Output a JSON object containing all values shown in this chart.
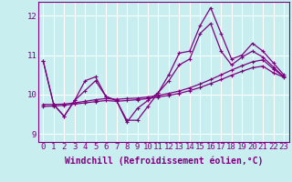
{
  "title": "",
  "xlabel": "Windchill (Refroidissement éolien,°C)",
  "background_color": "#c8eef0",
  "line_color": "#800080",
  "grid_color": "#ffffff",
  "xlim": [
    -0.5,
    23.5
  ],
  "ylim": [
    8.8,
    12.35
  ],
  "xticks": [
    0,
    1,
    2,
    3,
    4,
    5,
    6,
    7,
    8,
    9,
    10,
    11,
    12,
    13,
    14,
    15,
    16,
    17,
    18,
    19,
    20,
    21,
    22,
    23
  ],
  "yticks": [
    9,
    10,
    11,
    12
  ],
  "s1": [
    10.85,
    9.75,
    9.45,
    9.85,
    10.35,
    10.45,
    9.95,
    9.85,
    9.35,
    9.35,
    9.7,
    10.05,
    10.5,
    11.05,
    11.1,
    11.75,
    12.2,
    11.55,
    10.9,
    11.0,
    11.3,
    11.1,
    10.8,
    10.5
  ],
  "s2": [
    10.85,
    9.75,
    9.45,
    9.85,
    10.1,
    10.35,
    9.95,
    9.85,
    9.3,
    9.65,
    9.85,
    10.05,
    10.35,
    10.75,
    10.9,
    11.55,
    11.8,
    11.1,
    10.75,
    10.95,
    11.1,
    10.95,
    10.7,
    10.45
  ],
  "s3": [
    9.75,
    9.75,
    9.76,
    9.79,
    9.83,
    9.87,
    9.9,
    9.88,
    9.9,
    9.91,
    9.94,
    9.98,
    10.03,
    10.09,
    10.17,
    10.27,
    10.38,
    10.5,
    10.62,
    10.73,
    10.83,
    10.88,
    10.65,
    10.45
  ],
  "s4": [
    9.7,
    9.71,
    9.73,
    9.76,
    9.79,
    9.82,
    9.85,
    9.83,
    9.85,
    9.87,
    9.9,
    9.94,
    9.98,
    10.03,
    10.1,
    10.18,
    10.28,
    10.38,
    10.49,
    10.59,
    10.68,
    10.72,
    10.55,
    10.44
  ],
  "tick_fontsize": 6.5,
  "xlabel_fontsize": 7.0,
  "linewidth": 0.9,
  "markersize": 2.5
}
